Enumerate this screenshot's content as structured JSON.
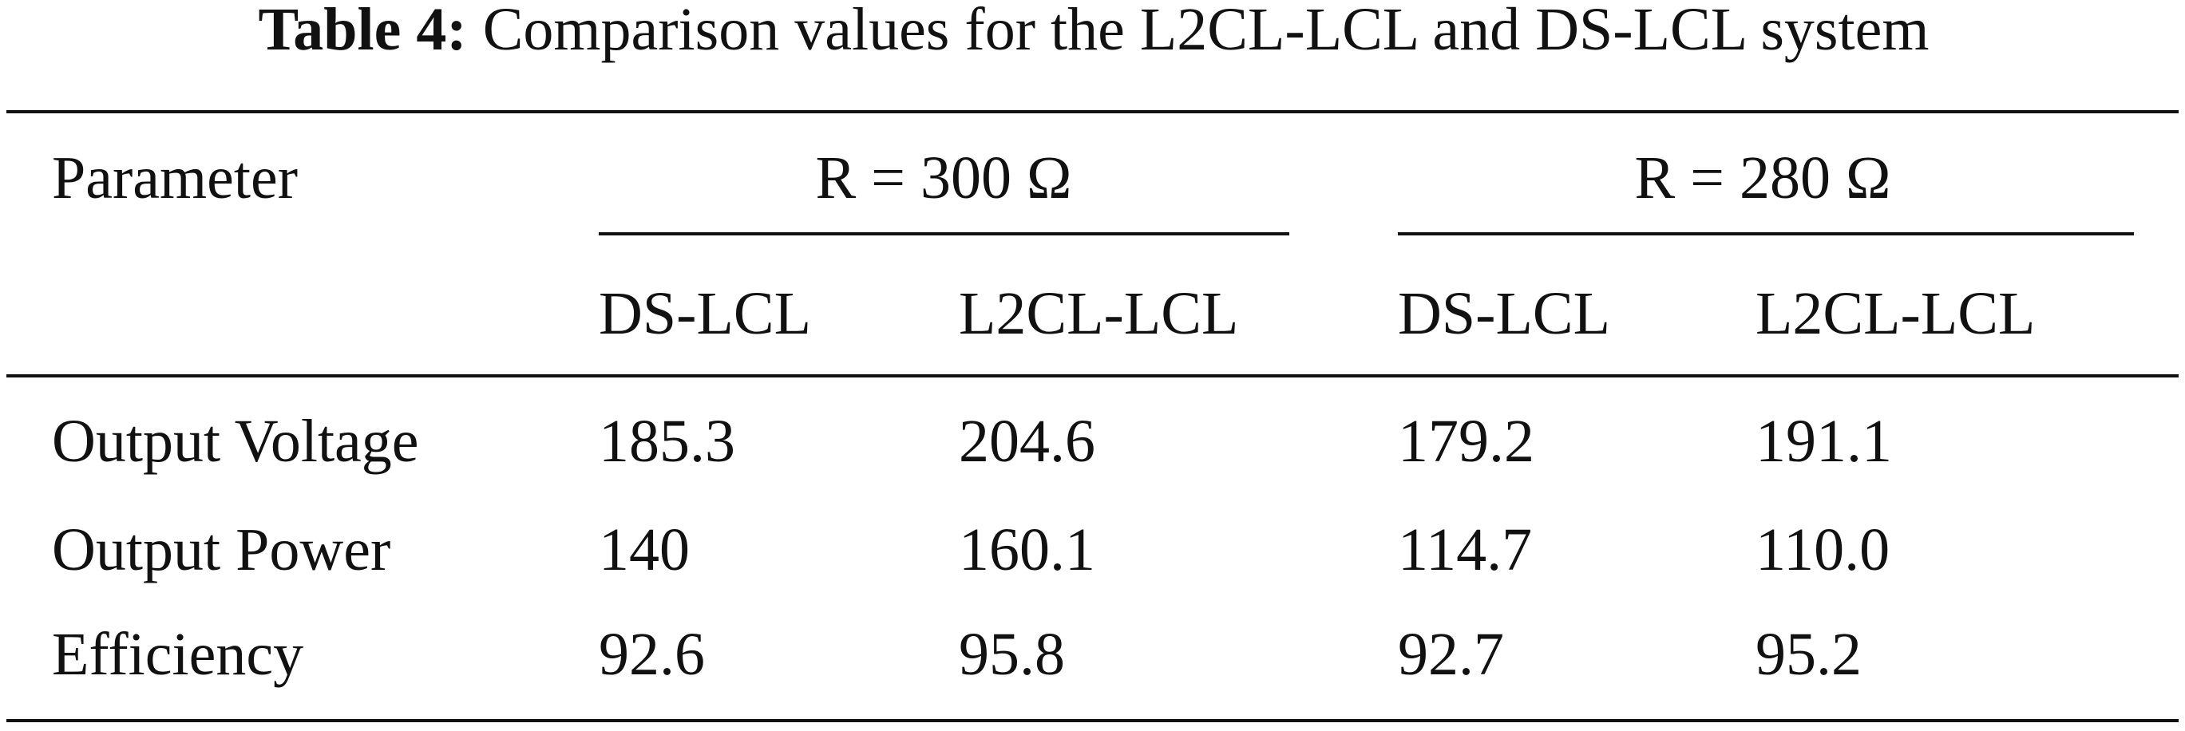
{
  "caption": {
    "label": "Table 4:",
    "text": "Comparison values for the L2CL-LCL and DS-LCL system"
  },
  "table": {
    "header": "Parameter",
    "groups": [
      "R = 300 Ω",
      "R = 280 Ω"
    ],
    "subheaders": [
      "DS-LCL",
      "L2CL-LCL",
      "DS-LCL",
      "L2CL-LCL"
    ],
    "rows": [
      [
        "Output Voltage",
        "185.3",
        "204.6",
        "179.2",
        "191.1"
      ],
      [
        "Output Power",
        "140",
        "160.1",
        "114.7",
        "110.0"
      ],
      [
        "Efficiency",
        "92.6",
        "95.8",
        "92.7",
        "95.2"
      ]
    ]
  }
}
